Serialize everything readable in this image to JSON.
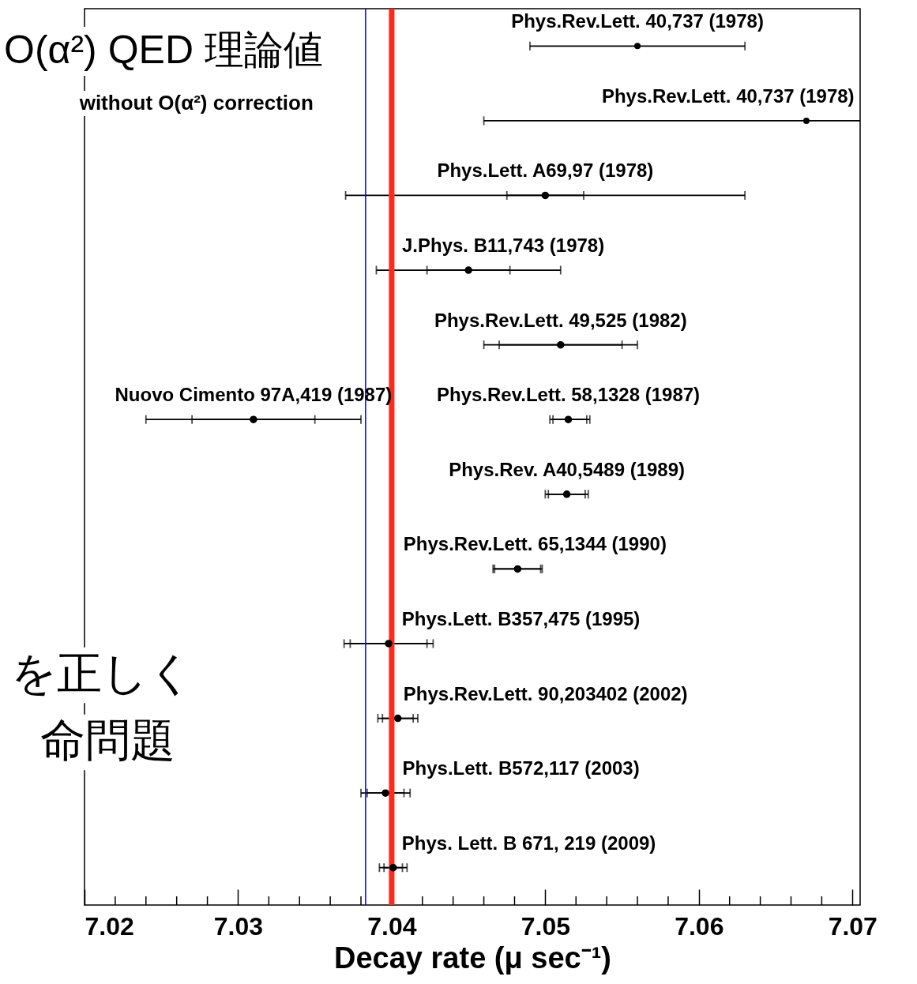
{
  "chart_data": {
    "type": "scatter",
    "orientation": "horizontal",
    "xlabel": "Decay rate (μ sec⁻¹)",
    "categories": [
      null,
      null,
      null,
      null,
      null,
      null,
      null,
      null,
      null,
      null,
      null,
      null
    ],
    "xlim": [
      7.02,
      7.0705
    ],
    "xticks": [
      7.02,
      {
        "value": 7.022,
        "label": null
      },
      {
        "value": 7.024,
        "label": null
      },
      {
        "value": 7.026,
        "label": null
      },
      {
        "value": 7.028,
        "label": null
      },
      7.03,
      {
        "value": 7.032,
        "label": null
      },
      {
        "value": 7.034,
        "label": null
      },
      {
        "value": 7.036,
        "label": null
      },
      {
        "value": 7.038,
        "label": null
      },
      7.04,
      {
        "value": 7.042,
        "label": null
      },
      {
        "value": 7.044,
        "label": null
      },
      {
        "value": 7.046,
        "label": null
      },
      {
        "value": 7.048,
        "label": null
      },
      7.05,
      {
        "value": 7.052,
        "label": null
      },
      {
        "value": 7.054,
        "label": null
      },
      {
        "value": 7.056,
        "label": null
      },
      {
        "value": 7.058,
        "label": null
      },
      7.06,
      {
        "value": 7.062,
        "label": null
      },
      {
        "value": 7.064,
        "label": null
      },
      {
        "value": 7.066,
        "label": null
      },
      {
        "value": 7.068,
        "label": null
      },
      7.07
    ],
    "tick_labels": "x",
    "marker": "circle",
    "series": [
      {
        "color": "#000000",
        "values": [
          7.056,
          7.067,
          7.05,
          7.045,
          7.051,
          7.0515,
          7.0514,
          7.0482,
          7.0398,
          7.0404,
          7.0396,
          7.0401
        ],
        "errors": [
          [
            7.049,
            7.063
          ],
          [
            7.046,
            7.0705
          ],
          [
            7.037,
            7.063
          ],
          [
            7.039,
            7.051
          ],
          [
            7.046,
            7.056
          ],
          [
            7.0503,
            7.0529
          ],
          [
            7.05,
            7.0528
          ],
          [
            7.0466,
            7.0498
          ],
          [
            7.0369,
            7.0427
          ],
          [
            7.0391,
            7.0417
          ],
          [
            7.038,
            7.0412
          ],
          [
            7.0392,
            7.041
          ]
        ],
        "value_labels": [
          "Phys.Rev.Lett. 40,737 (1978)",
          "Phys.Rev.Lett. 40,737 (1978)",
          "Phys.Lett. A69,97 (1978)",
          "J.Phys. B11,743 (1978)",
          "Phys.Rev.Lett. 49,525 (1982)",
          "Phys.Rev.Lett. 58,1328 (1987)",
          "Phys.Rev. A40,5489 (1989)",
          "Phys.Rev.Lett. 65,1344 (1990)",
          "Phys.Lett. B357,475 (1995)",
          "Phys.Rev.Lett. 90,203402 (2002)",
          "Phys.Lett. B572,117 (2003)",
          "Phys. Lett. B 671, 219 (2009)"
        ]
      },
      {
        "color": "#000000",
        "values": [
          null,
          null,
          null,
          null,
          null,
          7.031,
          null,
          null,
          null,
          null,
          null,
          null
        ],
        "errors": [
          null,
          null,
          null,
          null,
          null,
          [
            7.024,
            7.038
          ],
          null,
          null,
          null,
          null,
          null,
          null
        ],
        "value_labels": [
          null,
          null,
          null,
          null,
          null,
          "Nuovo Cimento 97A,419 (1987)",
          null,
          null,
          null,
          null,
          null,
          null
        ]
      },
      {
        "color": "#000000",
        "values": [
          null,
          null,
          7.05,
          7.045,
          7.051,
          7.0515,
          7.0514,
          7.0482,
          7.0398,
          7.0404,
          7.0396,
          7.0401
        ],
        "errors": [
          null,
          null,
          [
            7.0475,
            7.0525
          ],
          [
            7.0423,
            7.0477
          ],
          [
            7.047,
            7.055
          ],
          [
            7.0505,
            7.0527
          ],
          [
            7.0502,
            7.0526
          ],
          [
            7.0467,
            7.0497
          ],
          [
            7.0373,
            7.0423
          ],
          [
            7.0394,
            7.0414
          ],
          [
            7.0384,
            7.0408
          ],
          [
            7.0395,
            7.0407
          ]
        ]
      },
      {
        "color": "#000000",
        "values": [
          null,
          null,
          null,
          null,
          null,
          7.031,
          null,
          null,
          null,
          null,
          null,
          null
        ],
        "errors": [
          null,
          null,
          null,
          null,
          null,
          [
            7.027,
            7.035
          ],
          null,
          null,
          null,
          null,
          null,
          null
        ]
      }
    ],
    "ref_lines": [
      {
        "axis": "x",
        "value": 7.04,
        "label": "O(α²) QED 理論値",
        "color": "#ff2a1a"
      },
      {
        "axis": "x",
        "value": 7.0383,
        "label": "without O(α²) correction",
        "color": "#0000ff"
      }
    ],
    "annotations": [
      "を正しく",
      "命問題"
    ]
  }
}
